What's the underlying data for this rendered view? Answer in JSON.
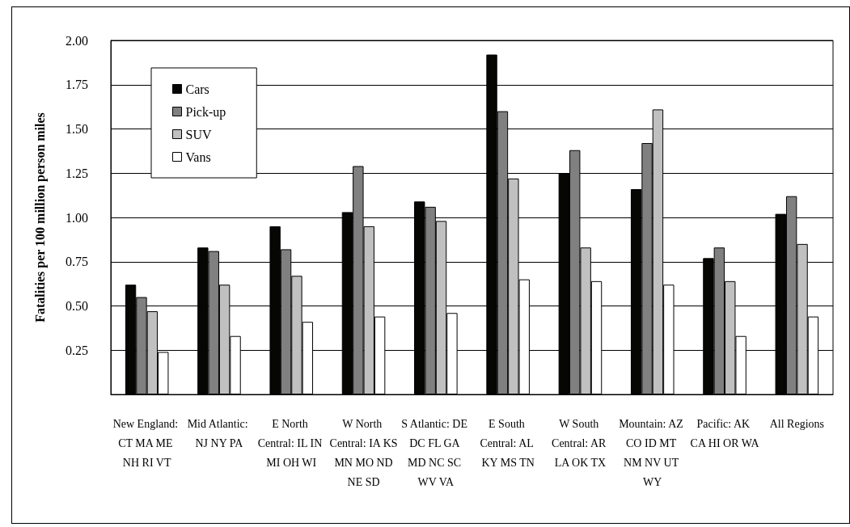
{
  "chart_data": {
    "type": "bar",
    "ylabel": "Fatalities per 100 million person miles",
    "categories": [
      "New England: CT MA ME NH RI VT",
      "Mid Atlantic: NJ NY PA",
      "E North Central: IL IN MI OH WI",
      "W North Central: IA KS MN MO ND NE SD",
      "S Atlantic: DE DC FL GA MD NC SC WV VA",
      "E South Central: AL KY MS TN",
      "W South Central: AR LA OK TX",
      "Mountain: AZ CO ID MT NM NV UT WY",
      "Pacific: AK CA HI OR WA",
      "All Regions"
    ],
    "series": [
      {
        "name": "Cars",
        "color": "#060604",
        "values": [
          0.62,
          0.83,
          0.95,
          1.03,
          1.09,
          1.92,
          1.25,
          1.16,
          0.77,
          1.02
        ]
      },
      {
        "name": "Pick-up",
        "color": "#808080",
        "values": [
          0.55,
          0.81,
          0.82,
          1.29,
          1.06,
          1.6,
          1.38,
          1.42,
          0.83,
          1.12
        ]
      },
      {
        "name": "SUV",
        "color": "#c0c0c0",
        "values": [
          0.47,
          0.62,
          0.67,
          0.95,
          0.98,
          1.22,
          0.83,
          1.61,
          0.64,
          0.85
        ]
      },
      {
        "name": "Vans",
        "color": "#ffffff",
        "values": [
          0.24,
          0.33,
          0.41,
          0.44,
          0.46,
          0.65,
          0.64,
          0.62,
          0.33,
          0.44
        ]
      }
    ],
    "ylim": [
      0,
      2
    ],
    "yticks": [
      {
        "value": 0,
        "label": null
      },
      {
        "value": 0.25,
        "label": "0.25"
      },
      {
        "value": 0.5,
        "label": "0.50"
      },
      {
        "value": 0.75,
        "label": "0.75"
      },
      {
        "value": 1,
        "label": "1.00"
      },
      {
        "value": 1.25,
        "label": "1.25"
      },
      {
        "value": 1.5,
        "label": "1.50"
      },
      {
        "value": 1.75,
        "label": "1.75"
      },
      {
        "value": 2,
        "label": "2.00"
      }
    ],
    "grid": "y",
    "legend": "top left"
  }
}
